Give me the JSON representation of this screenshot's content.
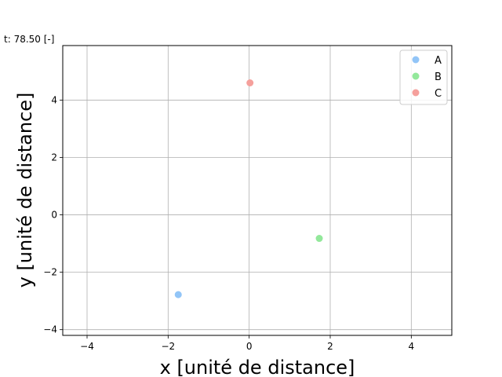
{
  "chart_data": {
    "type": "scatter",
    "title": "t: 78.50 [-]",
    "xlabel": "x [unité de distance]",
    "ylabel": "y [unité de distance]",
    "xlim": [
      -4.6,
      5.0
    ],
    "ylim": [
      -4.2,
      5.9
    ],
    "xticks": [
      -4,
      -2,
      0,
      2,
      4
    ],
    "yticks": [
      -4,
      -2,
      0,
      2,
      4
    ],
    "grid": true,
    "legend_position": "top-right",
    "series": [
      {
        "name": "A",
        "color": "#92c5f7",
        "points": [
          {
            "x": -1.75,
            "y": -2.78
          }
        ]
      },
      {
        "name": "B",
        "color": "#93e89b",
        "points": [
          {
            "x": 1.73,
            "y": -0.82
          }
        ]
      },
      {
        "name": "C",
        "color": "#f5a09c",
        "points": [
          {
            "x": 0.02,
            "y": 4.6
          }
        ]
      }
    ]
  }
}
